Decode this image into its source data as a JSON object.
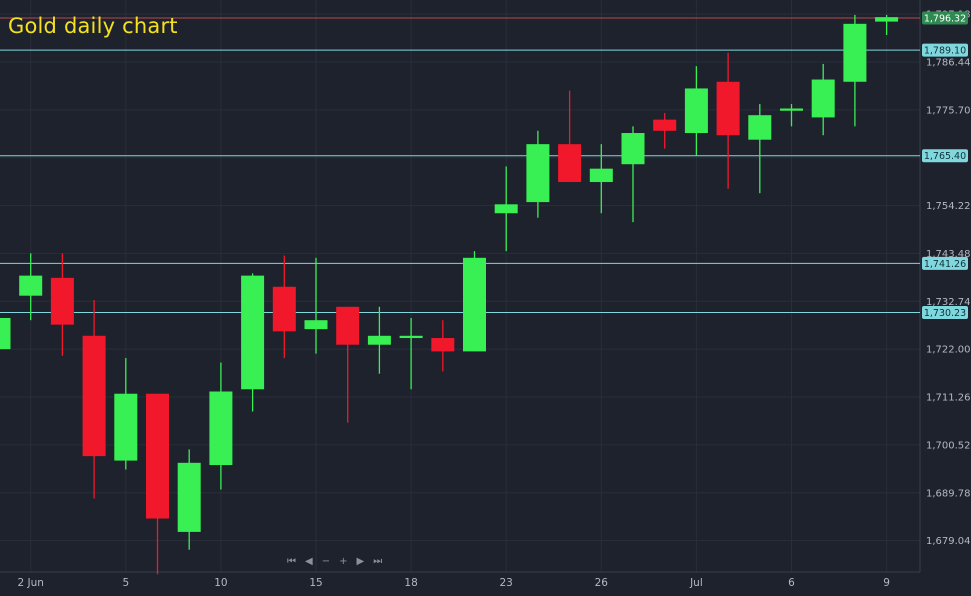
{
  "chart_data": {
    "type": "candlestick",
    "title": "Gold daily chart",
    "ylim": [
      1672,
      1799
    ],
    "y_ticks": [
      1679.04,
      1689.78,
      1700.52,
      1711.26,
      1722.0,
      1732.74,
      1743.48,
      1754.22,
      1764.96,
      1775.7,
      1786.44,
      1797.18
    ],
    "y_tick_labels": [
      "1,679.04",
      "1,689.78",
      "1,700.52",
      "1,711.26",
      "1,722.00",
      "1,732.74",
      "1,743.48",
      "1,754.22",
      "",
      "1,775.70",
      "1,786.44",
      "1,797.18"
    ],
    "x_ticks": [
      {
        "index": 1,
        "label": "2 Jun"
      },
      {
        "index": 4,
        "label": "5"
      },
      {
        "index": 7,
        "label": "10"
      },
      {
        "index": 10,
        "label": "15"
      },
      {
        "index": 13,
        "label": "18"
      },
      {
        "index": 16,
        "label": "23"
      },
      {
        "index": 19,
        "label": "26"
      },
      {
        "index": 22,
        "label": "Jul"
      },
      {
        "index": 25,
        "label": "6"
      },
      {
        "index": 28,
        "label": "9"
      }
    ],
    "candles": [
      {
        "open": 1722.0,
        "close": 1729.0,
        "high": 1731.0,
        "low": 1716.0
      },
      {
        "open": 1734.0,
        "close": 1738.5,
        "high": 1743.5,
        "low": 1728.5
      },
      {
        "open": 1738.0,
        "close": 1727.5,
        "high": 1743.5,
        "low": 1720.5
      },
      {
        "open": 1725.0,
        "close": 1698.0,
        "high": 1733.0,
        "low": 1688.5
      },
      {
        "open": 1697.0,
        "close": 1712.0,
        "high": 1720.0,
        "low": 1695.0
      },
      {
        "open": 1712.0,
        "close": 1684.0,
        "high": 1712.0,
        "low": 1671.5
      },
      {
        "open": 1681.0,
        "close": 1696.5,
        "high": 1699.5,
        "low": 1677.0
      },
      {
        "open": 1696.0,
        "close": 1712.5,
        "high": 1719.0,
        "low": 1690.5
      },
      {
        "open": 1713.0,
        "close": 1738.5,
        "high": 1739.0,
        "low": 1708.0
      },
      {
        "open": 1736.0,
        "close": 1726.0,
        "high": 1743.0,
        "low": 1720.0
      },
      {
        "open": 1726.5,
        "close": 1728.5,
        "high": 1742.5,
        "low": 1721.0
      },
      {
        "open": 1731.5,
        "close": 1723.0,
        "high": 1731.5,
        "low": 1705.5
      },
      {
        "open": 1723.0,
        "close": 1725.0,
        "high": 1731.5,
        "low": 1716.5
      },
      {
        "open": 1724.5,
        "close": 1725.0,
        "high": 1729.0,
        "low": 1713.0
      },
      {
        "open": 1724.5,
        "close": 1721.5,
        "high": 1728.5,
        "low": 1717.0
      },
      {
        "open": 1721.5,
        "close": 1742.5,
        "high": 1744.0,
        "low": 1721.5
      },
      {
        "open": 1752.5,
        "close": 1754.5,
        "high": 1763.0,
        "low": 1744.0
      },
      {
        "open": 1755.0,
        "close": 1768.0,
        "high": 1771.0,
        "low": 1751.5
      },
      {
        "open": 1768.0,
        "close": 1759.5,
        "high": 1780.0,
        "low": 1759.5
      },
      {
        "open": 1759.5,
        "close": 1762.5,
        "high": 1768.0,
        "low": 1752.5
      },
      {
        "open": 1763.5,
        "close": 1770.5,
        "high": 1772.0,
        "low": 1750.5
      },
      {
        "open": 1773.5,
        "close": 1771.0,
        "high": 1775.0,
        "low": 1767.0
      },
      {
        "open": 1770.5,
        "close": 1780.5,
        "high": 1785.5,
        "low": 1765.5
      },
      {
        "open": 1782.0,
        "close": 1770.0,
        "high": 1788.5,
        "low": 1758.0
      },
      {
        "open": 1769.0,
        "close": 1774.5,
        "high": 1777.0,
        "low": 1757.0
      },
      {
        "open": 1775.5,
        "close": 1776.0,
        "high": 1777.0,
        "low": 1772.0
      },
      {
        "open": 1774.0,
        "close": 1782.5,
        "high": 1786.0,
        "low": 1770.0
      },
      {
        "open": 1782.0,
        "close": 1795.0,
        "high": 1797.0,
        "low": 1772.0
      },
      {
        "open": 1795.5,
        "close": 1796.5,
        "high": 1797.0,
        "low": 1792.5
      }
    ],
    "horizontal_lines": [
      {
        "value": 1789.1,
        "label": "1,789.10"
      },
      {
        "value": 1765.4,
        "label": "1,765.40"
      },
      {
        "value": 1741.26,
        "label": "1,741.26"
      },
      {
        "value": 1730.23,
        "label": "1,730.23"
      }
    ],
    "last_price": {
      "value": 1796.32,
      "label": "1,796.32"
    },
    "colors": {
      "background": "#1e222d",
      "up": "#39f054",
      "down": "#f2182b",
      "level_line": "#7fd8de",
      "grid": "#2a2e3a",
      "last_price": "#2f8a52",
      "last_line": "#b54b4b"
    }
  },
  "nav": {
    "first": "⏮",
    "prev": "◀",
    "zoom_out": "−",
    "zoom_in": "+",
    "next": "▶",
    "last": "⏭"
  }
}
